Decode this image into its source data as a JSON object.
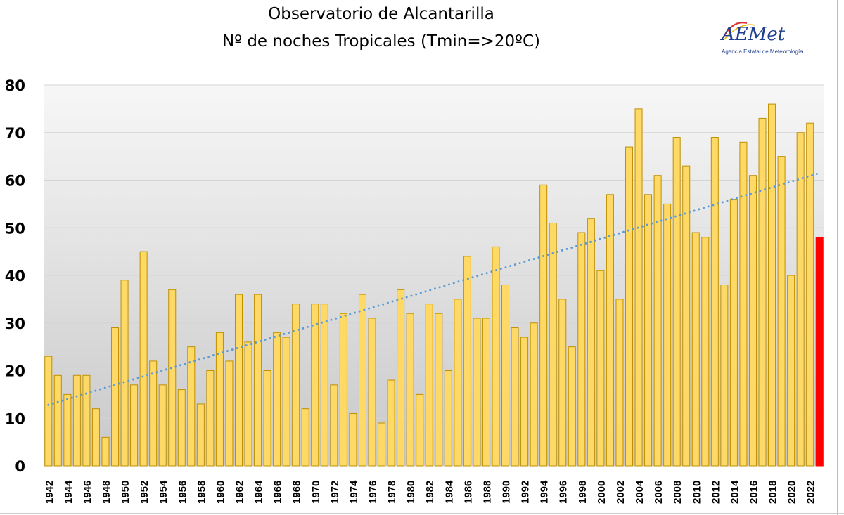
{
  "chart_data": {
    "type": "bar",
    "title": "Observatorio de Alcantarilla",
    "subtitle": "Nº de noches Tropicales (Tmin=>20ºC)",
    "xlabel": "",
    "ylabel": "",
    "ylim": [
      0,
      80
    ],
    "yticks": [
      0,
      10,
      20,
      30,
      40,
      50,
      60,
      70,
      80
    ],
    "grid": true,
    "legend": "none",
    "categories": [
      1942,
      1943,
      1944,
      1945,
      1946,
      1947,
      1948,
      1949,
      1950,
      1951,
      1952,
      1953,
      1954,
      1955,
      1956,
      1957,
      1958,
      1959,
      1960,
      1961,
      1962,
      1963,
      1964,
      1965,
      1966,
      1967,
      1968,
      1969,
      1970,
      1971,
      1972,
      1973,
      1974,
      1975,
      1976,
      1977,
      1978,
      1979,
      1980,
      1981,
      1982,
      1983,
      1984,
      1985,
      1986,
      1987,
      1988,
      1989,
      1990,
      1991,
      1992,
      1993,
      1994,
      1995,
      1996,
      1997,
      1998,
      1999,
      2000,
      2001,
      2002,
      2003,
      2004,
      2005,
      2006,
      2007,
      2008,
      2009,
      2010,
      2011,
      2012,
      2013,
      2014,
      2015,
      2016,
      2017,
      2018,
      2019,
      2020,
      2021,
      2022,
      2023
    ],
    "values": [
      23,
      19,
      15,
      19,
      19,
      12,
      6,
      29,
      39,
      17,
      45,
      22,
      17,
      37,
      16,
      25,
      13,
      20,
      28,
      22,
      36,
      26,
      36,
      20,
      28,
      27,
      34,
      12,
      34,
      34,
      17,
      32,
      11,
      36,
      31,
      9,
      18,
      37,
      32,
      15,
      34,
      32,
      20,
      35,
      44,
      31,
      31,
      46,
      38,
      29,
      27,
      30,
      59,
      51,
      35,
      25,
      49,
      52,
      41,
      57,
      35,
      67,
      75,
      57,
      61,
      55,
      69,
      63,
      49,
      48,
      69,
      38,
      56,
      68,
      61,
      73,
      76,
      65,
      40,
      70,
      72,
      48
    ],
    "highlight_last": true,
    "trendline": {
      "type": "linear",
      "style": "dotted",
      "start": 12.8,
      "end": 61.5
    },
    "colors": {
      "bar": "#ffd966",
      "bar_border": "#bf9000",
      "highlight": "#ff0000",
      "trend": "#5b9bd5"
    }
  },
  "logo": {
    "text": "AEMet",
    "subtext": "Agencia Estatal de Meteorología"
  }
}
